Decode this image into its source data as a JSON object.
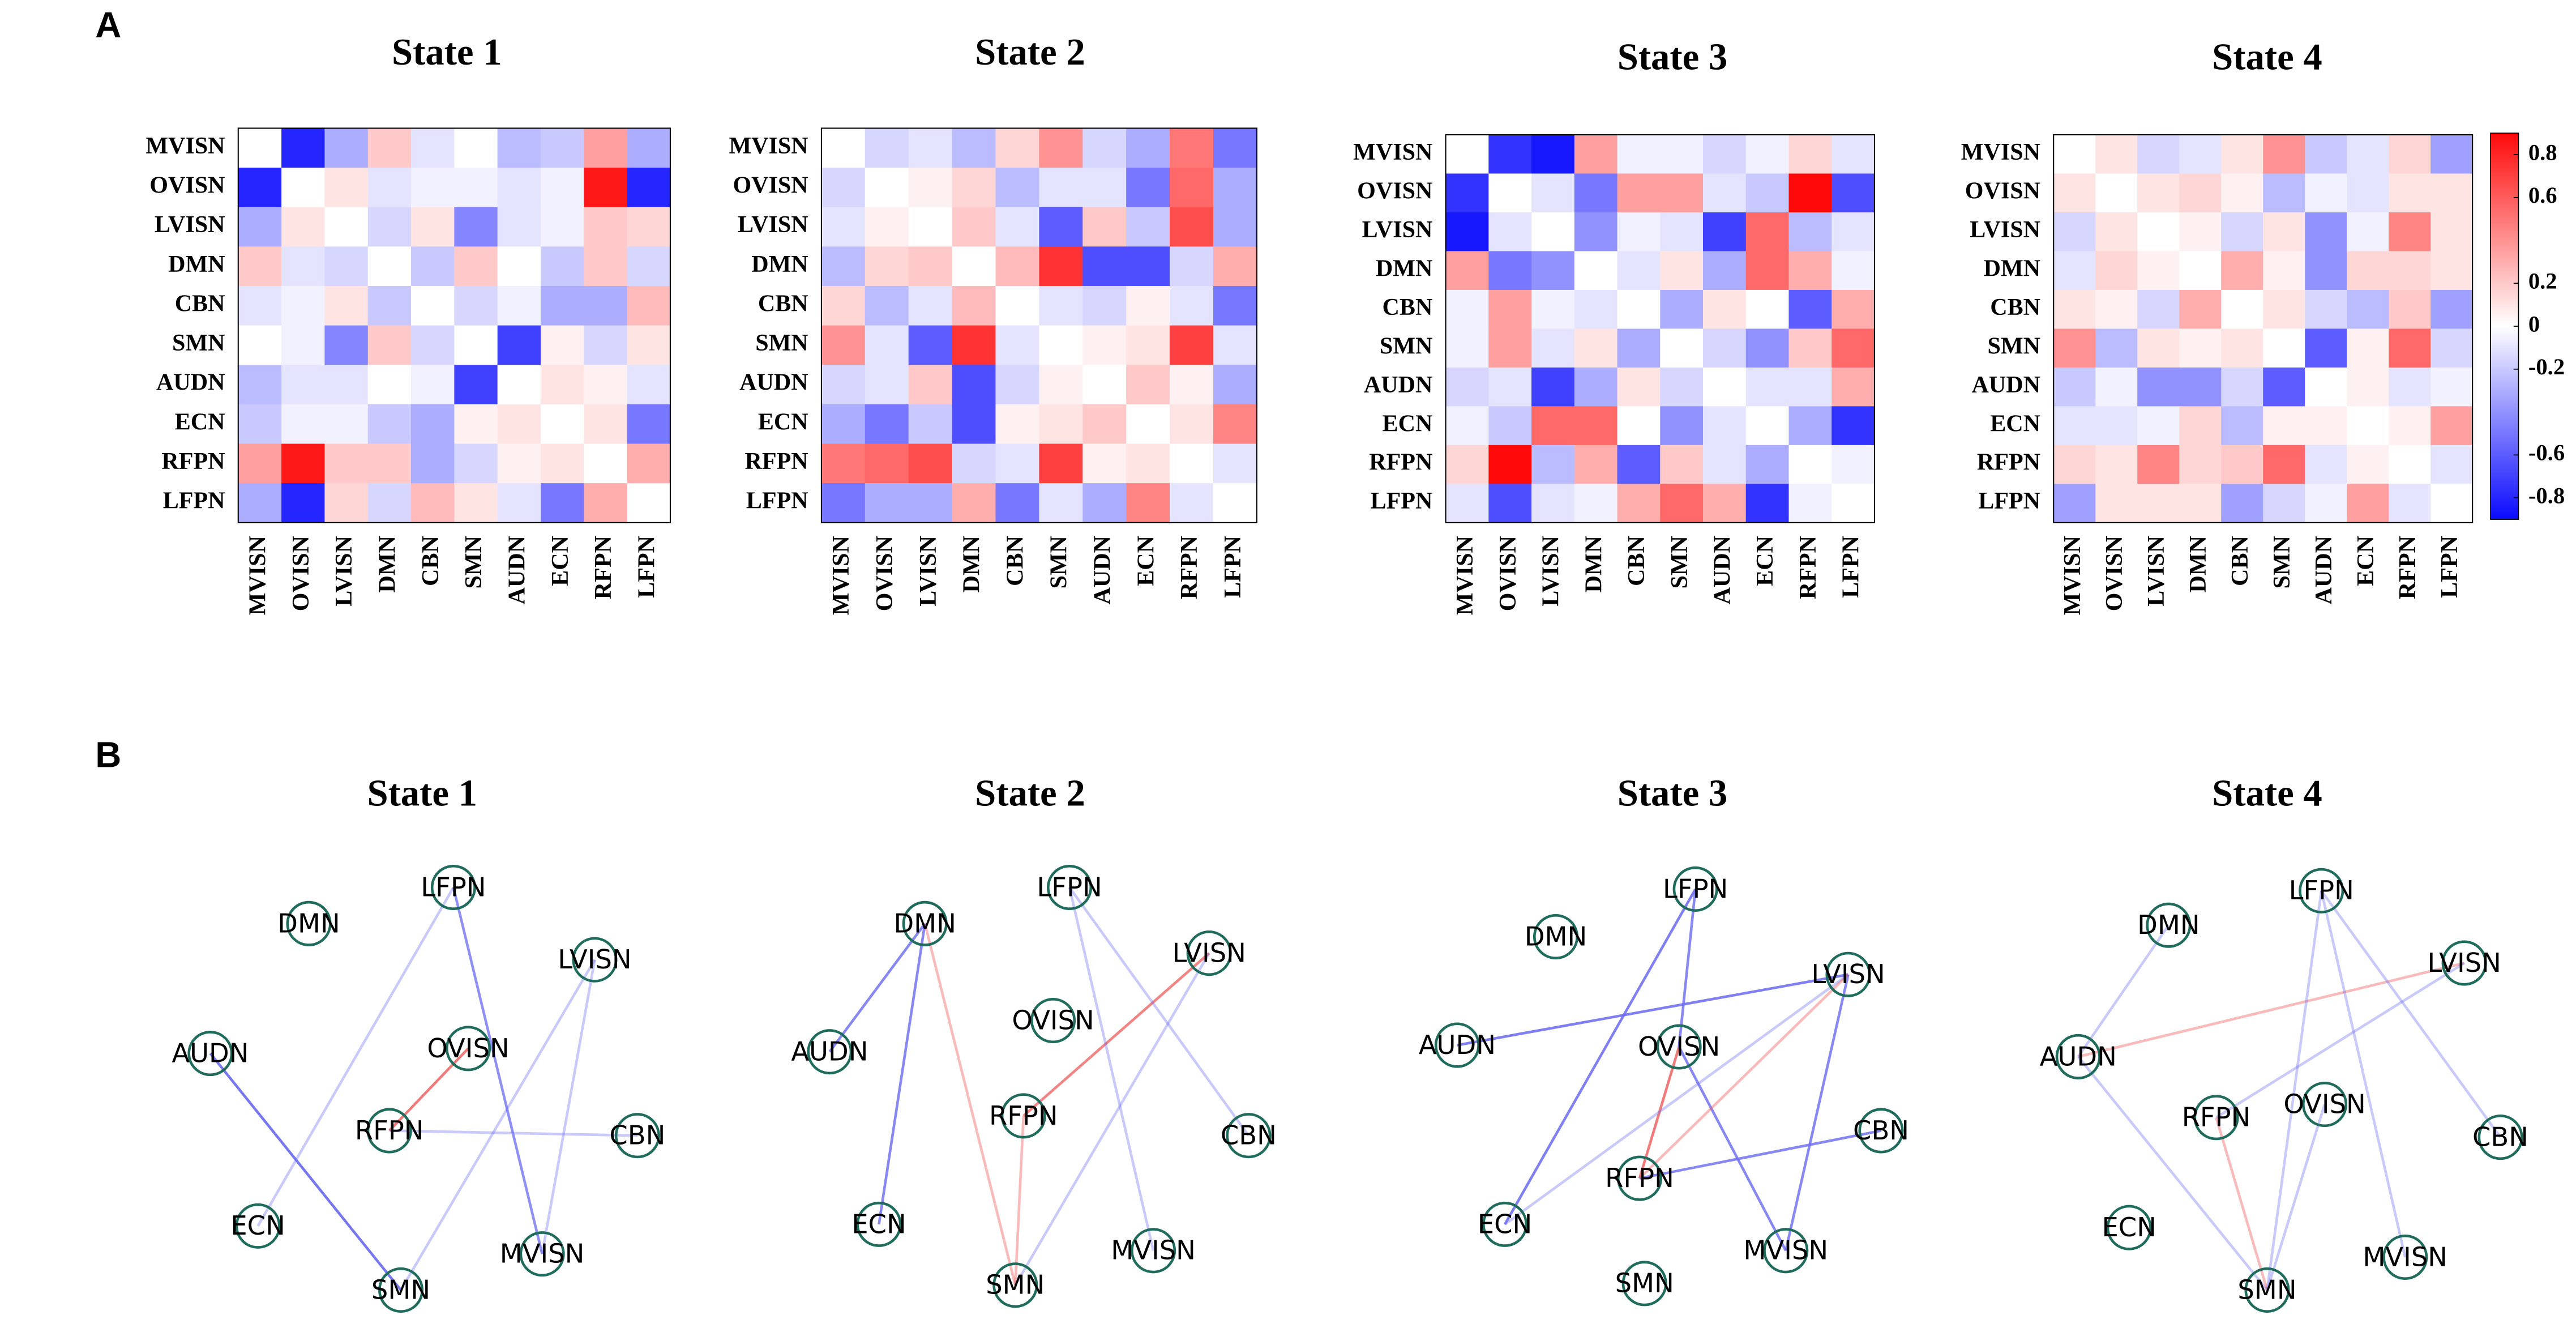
{
  "panel_labels": [
    "A",
    "B"
  ],
  "chart_data": [
    {
      "type": "heatmap",
      "title": "State 1",
      "x_categories": [
        "MVISN",
        "OVISN",
        "LVISN",
        "DMN",
        "CBN",
        "SMN",
        "AUDN",
        "ECN",
        "RFPN",
        "LFPN"
      ],
      "y_categories": [
        "MVISN",
        "OVISN",
        "LVISN",
        "DMN",
        "CBN",
        "SMN",
        "AUDN",
        "ECN",
        "RFPN",
        "LFPN"
      ],
      "zlim": [
        -0.9,
        0.9
      ],
      "colors": [
        "#0a0aff",
        "#ffffff",
        "#ff0a0a"
      ],
      "values": [
        [
          0,
          -0.8,
          -0.3,
          0.2,
          -0.1,
          0,
          -0.25,
          -0.2,
          0.35,
          -0.3
        ],
        [
          -0.8,
          0,
          0.1,
          -0.1,
          -0.05,
          -0.05,
          -0.1,
          -0.05,
          0.85,
          -0.8
        ],
        [
          -0.3,
          0.1,
          0,
          -0.15,
          0.1,
          -0.45,
          -0.1,
          -0.05,
          0.2,
          0.15
        ],
        [
          0.2,
          -0.1,
          -0.15,
          0,
          -0.2,
          0.2,
          0,
          -0.2,
          0.2,
          -0.15
        ],
        [
          -0.1,
          -0.05,
          0.1,
          -0.2,
          0,
          -0.15,
          -0.05,
          -0.3,
          -0.3,
          0.25
        ],
        [
          0,
          -0.05,
          -0.45,
          0.2,
          -0.15,
          0,
          -0.7,
          0.05,
          -0.15,
          0.1
        ],
        [
          -0.25,
          -0.1,
          -0.1,
          0,
          -0.05,
          -0.7,
          0,
          0.1,
          0.05,
          -0.1
        ],
        [
          -0.2,
          -0.05,
          -0.05,
          -0.2,
          -0.3,
          0.05,
          0.1,
          0,
          0.1,
          -0.5
        ],
        [
          0.35,
          0.85,
          0.2,
          0.2,
          -0.3,
          -0.15,
          0.05,
          0.1,
          0,
          0.3
        ],
        [
          -0.3,
          -0.8,
          0.15,
          -0.15,
          0.25,
          0.1,
          -0.1,
          -0.5,
          0.3,
          0
        ]
      ]
    },
    {
      "type": "heatmap",
      "title": "State 2",
      "x_categories": [
        "MVISN",
        "OVISN",
        "LVISN",
        "DMN",
        "CBN",
        "SMN",
        "AUDN",
        "ECN",
        "RFPN",
        "LFPN"
      ],
      "y_categories": [
        "MVISN",
        "OVISN",
        "LVISN",
        "DMN",
        "CBN",
        "SMN",
        "AUDN",
        "ECN",
        "RFPN",
        "LFPN"
      ],
      "zlim": [
        -0.9,
        0.9
      ],
      "colors": [
        "#0a0aff",
        "#ffffff",
        "#ff0a0a"
      ],
      "values": [
        [
          0,
          -0.15,
          -0.1,
          -0.25,
          0.15,
          0.4,
          -0.15,
          -0.3,
          0.5,
          -0.5
        ],
        [
          -0.15,
          0,
          0.05,
          0.15,
          -0.25,
          -0.1,
          -0.1,
          -0.5,
          0.55,
          -0.3
        ],
        [
          -0.1,
          0.05,
          0,
          0.2,
          -0.1,
          -0.6,
          0.2,
          -0.2,
          0.65,
          -0.3
        ],
        [
          -0.25,
          0.15,
          0.2,
          0,
          0.25,
          0.75,
          -0.65,
          -0.65,
          -0.15,
          0.3
        ],
        [
          0.15,
          -0.25,
          -0.1,
          0.25,
          0,
          -0.1,
          -0.15,
          0.05,
          -0.1,
          -0.5
        ],
        [
          0.4,
          -0.1,
          -0.6,
          0.75,
          -0.1,
          0,
          0.05,
          0.1,
          0.7,
          -0.1
        ],
        [
          -0.15,
          -0.1,
          0.2,
          -0.65,
          -0.15,
          0.05,
          0,
          0.2,
          0.05,
          -0.3
        ],
        [
          -0.3,
          -0.5,
          -0.2,
          -0.65,
          0.05,
          0.1,
          0.2,
          0,
          0.1,
          0.45
        ],
        [
          0.5,
          0.55,
          0.65,
          -0.15,
          -0.1,
          0.7,
          0.05,
          0.1,
          0,
          -0.1
        ],
        [
          -0.5,
          -0.3,
          -0.3,
          0.3,
          -0.5,
          -0.1,
          -0.3,
          0.45,
          -0.1,
          0
        ]
      ]
    },
    {
      "type": "heatmap",
      "title": "State 3",
      "x_categories": [
        "MVISN",
        "OVISN",
        "LVISN",
        "DMN",
        "CBN",
        "SMN",
        "AUDN",
        "ECN",
        "RFPN",
        "LFPN"
      ],
      "y_categories": [
        "MVISN",
        "OVISN",
        "LVISN",
        "DMN",
        "CBN",
        "SMN",
        "AUDN",
        "ECN",
        "RFPN",
        "LFPN"
      ],
      "zlim": [
        -0.9,
        0.9
      ],
      "colors": [
        "#0a0aff",
        "#ffffff",
        "#ff0a0a"
      ],
      "values": [
        [
          0,
          -0.75,
          -0.85,
          0.35,
          -0.05,
          -0.05,
          -0.15,
          -0.05,
          0.15,
          -0.1
        ],
        [
          -0.75,
          0,
          -0.1,
          -0.5,
          0.35,
          0.35,
          -0.1,
          -0.2,
          0.9,
          -0.65
        ],
        [
          -0.85,
          -0.1,
          0,
          -0.4,
          -0.05,
          -0.1,
          -0.7,
          0.55,
          -0.25,
          -0.1
        ],
        [
          0.35,
          -0.5,
          -0.4,
          0,
          -0.1,
          0.1,
          -0.3,
          0.55,
          0.3,
          -0.05
        ],
        [
          -0.05,
          0.35,
          -0.05,
          -0.1,
          0,
          -0.3,
          0.1,
          0,
          -0.6,
          0.3
        ],
        [
          -0.05,
          0.35,
          -0.1,
          0.1,
          -0.3,
          0,
          -0.15,
          -0.4,
          0.2,
          0.55
        ],
        [
          -0.15,
          -0.1,
          -0.7,
          -0.3,
          0.1,
          -0.15,
          0,
          -0.1,
          -0.1,
          0.3
        ],
        [
          -0.05,
          -0.2,
          0.55,
          0.55,
          0,
          -0.4,
          -0.1,
          0,
          -0.3,
          -0.75
        ],
        [
          0.15,
          0.9,
          -0.25,
          0.3,
          -0.6,
          0.2,
          -0.1,
          -0.3,
          0,
          -0.05
        ],
        [
          -0.1,
          -0.65,
          -0.1,
          -0.05,
          0.3,
          0.55,
          0.3,
          -0.75,
          -0.05,
          0
        ]
      ]
    },
    {
      "type": "heatmap",
      "title": "State 4",
      "x_categories": [
        "MVISN",
        "OVISN",
        "LVISN",
        "DMN",
        "CBN",
        "SMN",
        "AUDN",
        "ECN",
        "RFPN",
        "LFPN"
      ],
      "y_categories": [
        "MVISN",
        "OVISN",
        "LVISN",
        "DMN",
        "CBN",
        "SMN",
        "AUDN",
        "ECN",
        "RFPN",
        "LFPN"
      ],
      "zlim": [
        -0.9,
        0.9
      ],
      "colors": [
        "#0a0aff",
        "#ffffff",
        "#ff0a0a"
      ],
      "colorbar_ticks": [
        0.8,
        0.6,
        0.2,
        0,
        -0.2,
        -0.6,
        -0.8
      ],
      "values": [
        [
          0,
          0.1,
          -0.15,
          -0.1,
          0.1,
          0.4,
          -0.2,
          -0.1,
          0.15,
          -0.35
        ],
        [
          0.1,
          0,
          0.1,
          0.15,
          0.05,
          -0.25,
          -0.05,
          -0.1,
          0.1,
          0.1
        ],
        [
          -0.15,
          0.1,
          0,
          0.05,
          -0.15,
          0.1,
          -0.4,
          -0.05,
          0.45,
          0.1
        ],
        [
          -0.1,
          0.15,
          0.05,
          0,
          0.3,
          0.05,
          -0.4,
          0.15,
          0.15,
          0.1
        ],
        [
          0.1,
          0.05,
          -0.15,
          0.3,
          0,
          0.1,
          -0.15,
          -0.25,
          0.2,
          -0.35
        ],
        [
          0.4,
          -0.25,
          0.1,
          0.05,
          0.1,
          0,
          -0.6,
          0.05,
          0.55,
          -0.15
        ],
        [
          -0.2,
          -0.05,
          -0.4,
          -0.4,
          -0.15,
          -0.6,
          0,
          0.05,
          -0.1,
          -0.05
        ],
        [
          -0.1,
          -0.1,
          -0.05,
          0.15,
          -0.25,
          0.05,
          0.05,
          0,
          0.05,
          0.35
        ],
        [
          0.15,
          0.1,
          0.45,
          0.15,
          0.2,
          0.55,
          -0.1,
          0.05,
          0,
          -0.1
        ],
        [
          -0.35,
          0.1,
          0.1,
          0.1,
          -0.35,
          -0.15,
          -0.05,
          0.35,
          -0.1,
          0
        ]
      ]
    },
    {
      "type": "network",
      "title": "State 1",
      "nodes": [
        "DMN",
        "LFPN",
        "LVISN",
        "AUDN",
        "OVISN",
        "RFPN",
        "CBN",
        "ECN",
        "SMN",
        "MVISN"
      ],
      "edges": [
        {
          "source": "LFPN",
          "target": "MVISN",
          "weight": -0.45
        },
        {
          "source": "AUDN",
          "target": "SMN",
          "weight": -0.6
        },
        {
          "source": "OVISN",
          "target": "RFPN",
          "weight": 0.5
        },
        {
          "source": "LFPN",
          "target": "ECN",
          "weight": -0.1
        },
        {
          "source": "RFPN",
          "target": "CBN",
          "weight": -0.1
        },
        {
          "source": "LVISN",
          "target": "SMN",
          "weight": -0.1
        },
        {
          "source": "LVISN",
          "target": "MVISN",
          "weight": -0.1
        }
      ]
    },
    {
      "type": "network",
      "title": "State 2",
      "nodes": [
        "DMN",
        "LFPN",
        "LVISN",
        "AUDN",
        "OVISN",
        "RFPN",
        "CBN",
        "ECN",
        "SMN",
        "MVISN"
      ],
      "edges": [
        {
          "source": "DMN",
          "target": "AUDN",
          "weight": -0.5
        },
        {
          "source": "DMN",
          "target": "ECN",
          "weight": -0.5
        },
        {
          "source": "DMN",
          "target": "SMN",
          "weight": 0.15
        },
        {
          "source": "LVISN",
          "target": "RFPN",
          "weight": 0.45
        },
        {
          "source": "LVISN",
          "target": "SMN",
          "weight": -0.1
        },
        {
          "source": "LFPN",
          "target": "MVISN",
          "weight": -0.1
        },
        {
          "source": "LFPN",
          "target": "CBN",
          "weight": -0.1
        },
        {
          "source": "RFPN",
          "target": "SMN",
          "weight": 0.15
        }
      ]
    },
    {
      "type": "network",
      "title": "State 3",
      "nodes": [
        "DMN",
        "LFPN",
        "LVISN",
        "AUDN",
        "OVISN",
        "RFPN",
        "CBN",
        "ECN",
        "SMN",
        "MVISN"
      ],
      "edges": [
        {
          "source": "AUDN",
          "target": "LVISN",
          "weight": -0.55
        },
        {
          "source": "LFPN",
          "target": "ECN",
          "weight": -0.55
        },
        {
          "source": "LFPN",
          "target": "OVISN",
          "weight": -0.5
        },
        {
          "source": "OVISN",
          "target": "RFPN",
          "weight": 0.5
        },
        {
          "source": "OVISN",
          "target": "MVISN",
          "weight": -0.5
        },
        {
          "source": "LVISN",
          "target": "MVISN",
          "weight": -0.5
        },
        {
          "source": "RFPN",
          "target": "CBN",
          "weight": -0.5
        },
        {
          "source": "LVISN",
          "target": "ECN",
          "weight": -0.1
        },
        {
          "source": "LVISN",
          "target": "RFPN",
          "weight": 0.15
        }
      ]
    },
    {
      "type": "network",
      "title": "State 4",
      "nodes": [
        "DMN",
        "LFPN",
        "LVISN",
        "AUDN",
        "OVISN",
        "RFPN",
        "CBN",
        "ECN",
        "SMN",
        "MVISN"
      ],
      "edges": [
        {
          "source": "DMN",
          "target": "AUDN",
          "weight": -0.1
        },
        {
          "source": "AUDN",
          "target": "LVISN",
          "weight": 0.15
        },
        {
          "source": "AUDN",
          "target": "SMN",
          "weight": -0.1
        },
        {
          "source": "LFPN",
          "target": "SMN",
          "weight": -0.1
        },
        {
          "source": "LFPN",
          "target": "CBN",
          "weight": -0.1
        },
        {
          "source": "LVISN",
          "target": "RFPN",
          "weight": -0.1
        },
        {
          "source": "RFPN",
          "target": "SMN",
          "weight": 0.15
        },
        {
          "source": "OVISN",
          "target": "SMN",
          "weight": -0.1
        },
        {
          "source": "LFPN",
          "target": "MVISN",
          "weight": -0.1
        }
      ]
    }
  ]
}
